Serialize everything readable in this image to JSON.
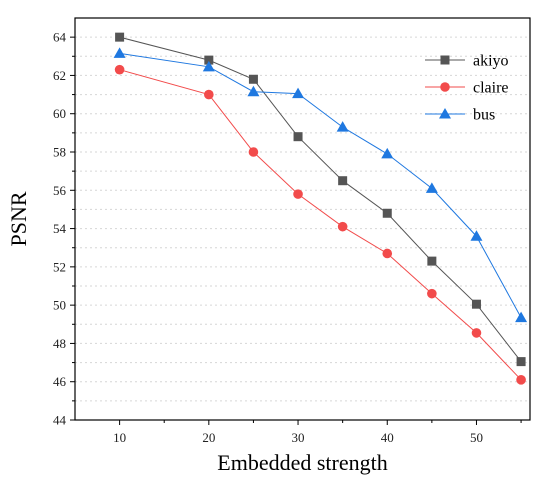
{
  "chart_data": {
    "type": "line",
    "xlabel": "Embedded strength",
    "ylabel": "PSNR",
    "xlim": [
      5,
      56
    ],
    "ylim": [
      44,
      65
    ],
    "xticks": [
      10,
      20,
      30,
      40,
      50
    ],
    "yticks": [
      44,
      46,
      48,
      50,
      52,
      54,
      56,
      58,
      60,
      62,
      64
    ],
    "grid": true,
    "legend_position": "top-right",
    "x": [
      10,
      20,
      25,
      30,
      35,
      40,
      45,
      50,
      55
    ],
    "series": [
      {
        "name": "akiyo",
        "color": "#555555",
        "marker": "square",
        "values": [
          64.0,
          62.8,
          61.8,
          58.8,
          56.5,
          54.8,
          52.3,
          50.05,
          47.05
        ]
      },
      {
        "name": "claire",
        "color": "#f24b4b",
        "marker": "circle",
        "values": [
          62.3,
          61.0,
          58.0,
          55.8,
          54.1,
          52.7,
          50.6,
          48.55,
          46.1
        ]
      },
      {
        "name": "bus",
        "color": "#1f78e0",
        "marker": "triangle",
        "values": [
          63.15,
          62.45,
          61.15,
          61.05,
          59.3,
          57.9,
          56.1,
          53.6,
          49.35
        ]
      }
    ]
  }
}
